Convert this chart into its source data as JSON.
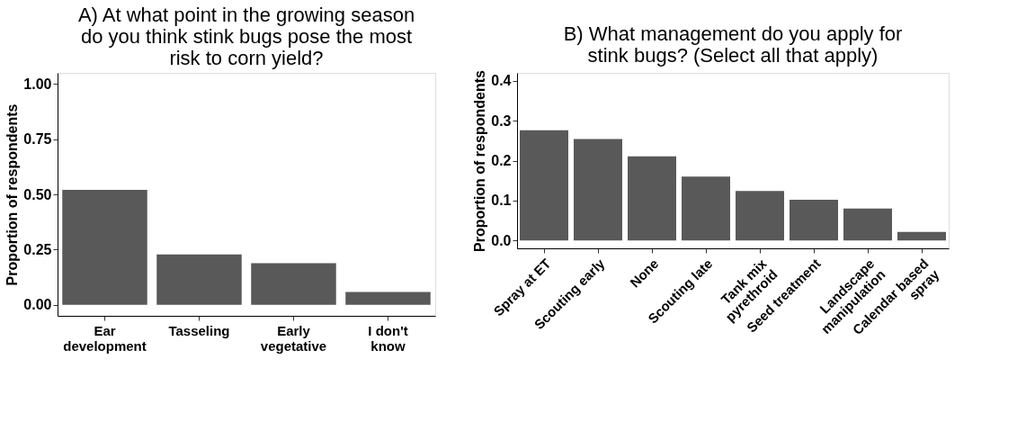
{
  "chart_data": [
    {
      "type": "bar",
      "title": "A) At what point in the growing season\ndo you think stink bugs pose the most\nrisk to corn yield?",
      "ylabel": "Proportion of respondents",
      "categories": [
        "Ear\ndevelopment",
        "Tasseling",
        "Early\nvegetative",
        "I don't\nknow"
      ],
      "values": [
        0.52,
        0.228,
        0.188,
        0.058
      ],
      "color": "#595959",
      "ylim": [
        -0.05,
        1.05
      ],
      "yticks": [
        {
          "value": 0,
          "label": "0.00"
        },
        0.25,
        {
          "value": 0.5,
          "label": "0.50"
        },
        0.75,
        {
          "value": 1,
          "label": "1.00"
        }
      ],
      "grid": false
    },
    {
      "type": "bar",
      "title": "B) What management do you apply for\nstink bugs? (Select all that apply)",
      "ylabel": "Proportion of respondents",
      "categories": [
        "Spray at ET",
        "Scouting early",
        "None",
        "Scouting late",
        "Tank mix\npyrethroid",
        "Seed treatment",
        "Landscape\nmanipulation",
        "Calendar based\nspray"
      ],
      "values": [
        0.276,
        0.254,
        0.211,
        0.16,
        0.124,
        0.102,
        0.08,
        0.021
      ],
      "color": "#595959",
      "ylim": [
        -0.02,
        0.42
      ],
      "yticks": [
        {
          "value": 0,
          "label": "0.0"
        },
        0.1,
        0.2,
        0.3,
        0.4
      ],
      "grid": false
    }
  ]
}
